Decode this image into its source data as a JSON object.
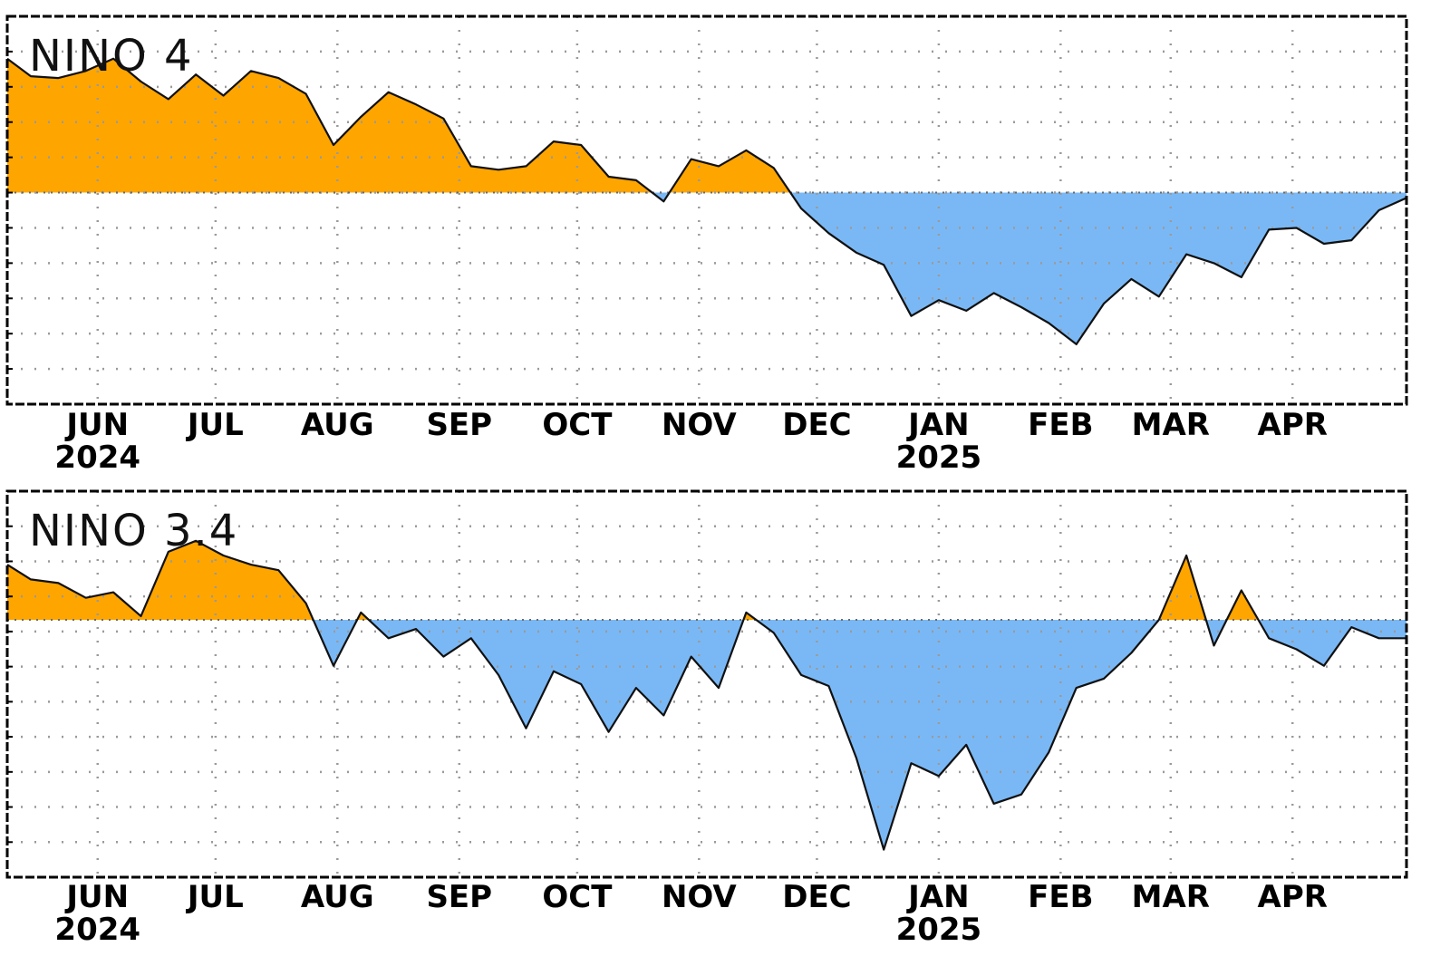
{
  "chart_data": [
    {
      "type": "area",
      "title": "NINO 4",
      "month_labels": [
        "JUN",
        "JUL",
        "AUG",
        "SEP",
        "OCT",
        "NOV",
        "DEC",
        "JAN",
        "FEB",
        "MAR",
        "APR"
      ],
      "year_labels": [
        {
          "month": "JUN",
          "year": "2024"
        },
        {
          "month": "JAN",
          "year": "2025"
        }
      ],
      "xlim": [
        "2024-05-09",
        "2025-04-30"
      ],
      "ylim": [
        -1.2,
        1.0
      ],
      "grid": true,
      "colors": {
        "positive": "#ffa500",
        "negative": "#7ab8f5",
        "line": "#111111"
      },
      "x": [
        "2024-05-09",
        "2024-05-15",
        "2024-05-22",
        "2024-05-29",
        "2024-06-05",
        "2024-06-12",
        "2024-06-19",
        "2024-06-26",
        "2024-07-03",
        "2024-07-10",
        "2024-07-17",
        "2024-07-24",
        "2024-07-31",
        "2024-08-07",
        "2024-08-14",
        "2024-08-21",
        "2024-08-28",
        "2024-09-04",
        "2024-09-11",
        "2024-09-18",
        "2024-09-25",
        "2024-10-02",
        "2024-10-09",
        "2024-10-16",
        "2024-10-23",
        "2024-10-30",
        "2024-11-06",
        "2024-11-13",
        "2024-11-20",
        "2024-11-27",
        "2024-12-04",
        "2024-12-11",
        "2024-12-18",
        "2024-12-25",
        "2025-01-01",
        "2025-01-08",
        "2025-01-15",
        "2025-01-22",
        "2025-01-29",
        "2025-02-05",
        "2025-02-12",
        "2025-02-19",
        "2025-02-26",
        "2025-03-05",
        "2025-03-12",
        "2025-03-19",
        "2025-03-26",
        "2025-04-02",
        "2025-04-09",
        "2025-04-16",
        "2025-04-23",
        "2025-04-30"
      ],
      "values": [
        0.76,
        0.66,
        0.65,
        0.69,
        0.76,
        0.63,
        0.53,
        0.67,
        0.55,
        0.69,
        0.65,
        0.56,
        0.27,
        0.43,
        0.57,
        0.5,
        0.42,
        0.15,
        0.13,
        0.15,
        0.29,
        0.27,
        0.09,
        0.07,
        -0.05,
        0.19,
        0.15,
        0.24,
        0.14,
        -0.09,
        -0.23,
        -0.34,
        -0.41,
        -0.7,
        -0.61,
        -0.67,
        -0.57,
        -0.65,
        -0.74,
        -0.86,
        -0.63,
        -0.49,
        -0.59,
        -0.35,
        -0.4,
        -0.48,
        -0.21,
        -0.2,
        -0.29,
        -0.27,
        -0.1,
        -0.03
      ]
    },
    {
      "type": "area",
      "title": "NINO 3.4",
      "month_labels": [
        "JUN",
        "JUL",
        "AUG",
        "SEP",
        "OCT",
        "NOV",
        "DEC",
        "JAN",
        "FEB",
        "MAR",
        "APR"
      ],
      "year_labels": [
        {
          "month": "JUN",
          "year": "2024"
        },
        {
          "month": "JAN",
          "year": "2025"
        }
      ],
      "xlim": [
        "2024-05-09",
        "2025-04-30"
      ],
      "ylim": [
        -1.4,
        0.7
      ],
      "grid": true,
      "colors": {
        "positive": "#ffa500",
        "negative": "#7ab8f5",
        "line": "#111111"
      },
      "x": [
        "2024-05-09",
        "2024-05-15",
        "2024-05-22",
        "2024-05-29",
        "2024-06-05",
        "2024-06-12",
        "2024-06-19",
        "2024-06-26",
        "2024-07-03",
        "2024-07-10",
        "2024-07-17",
        "2024-07-24",
        "2024-07-31",
        "2024-08-07",
        "2024-08-14",
        "2024-08-21",
        "2024-08-28",
        "2024-09-04",
        "2024-09-11",
        "2024-09-18",
        "2024-09-25",
        "2024-10-02",
        "2024-10-09",
        "2024-10-16",
        "2024-10-23",
        "2024-10-30",
        "2024-11-06",
        "2024-11-13",
        "2024-11-20",
        "2024-11-27",
        "2024-12-04",
        "2024-12-11",
        "2024-12-18",
        "2024-12-25",
        "2025-01-01",
        "2025-01-08",
        "2025-01-15",
        "2025-01-22",
        "2025-01-29",
        "2025-02-05",
        "2025-02-12",
        "2025-02-19",
        "2025-02-26",
        "2025-03-05",
        "2025-03-12",
        "2025-03-19",
        "2025-03-26",
        "2025-04-02",
        "2025-04-09",
        "2025-04-16",
        "2025-04-23",
        "2025-04-30"
      ],
      "values": [
        0.3,
        0.22,
        0.2,
        0.12,
        0.15,
        0.02,
        0.37,
        0.43,
        0.35,
        0.3,
        0.27,
        0.09,
        -0.25,
        0.04,
        -0.1,
        -0.05,
        -0.2,
        -0.1,
        -0.3,
        -0.59,
        -0.28,
        -0.35,
        -0.61,
        -0.37,
        -0.52,
        -0.2,
        -0.37,
        0.04,
        -0.07,
        -0.3,
        -0.36,
        -0.75,
        -1.25,
        -0.78,
        -0.85,
        -0.68,
        -1.0,
        -0.95,
        -0.72,
        -0.37,
        -0.32,
        -0.18,
        0.0,
        0.35,
        -0.14,
        0.16,
        -0.1,
        -0.16,
        -0.25,
        -0.04,
        -0.1,
        -0.1
      ]
    }
  ]
}
